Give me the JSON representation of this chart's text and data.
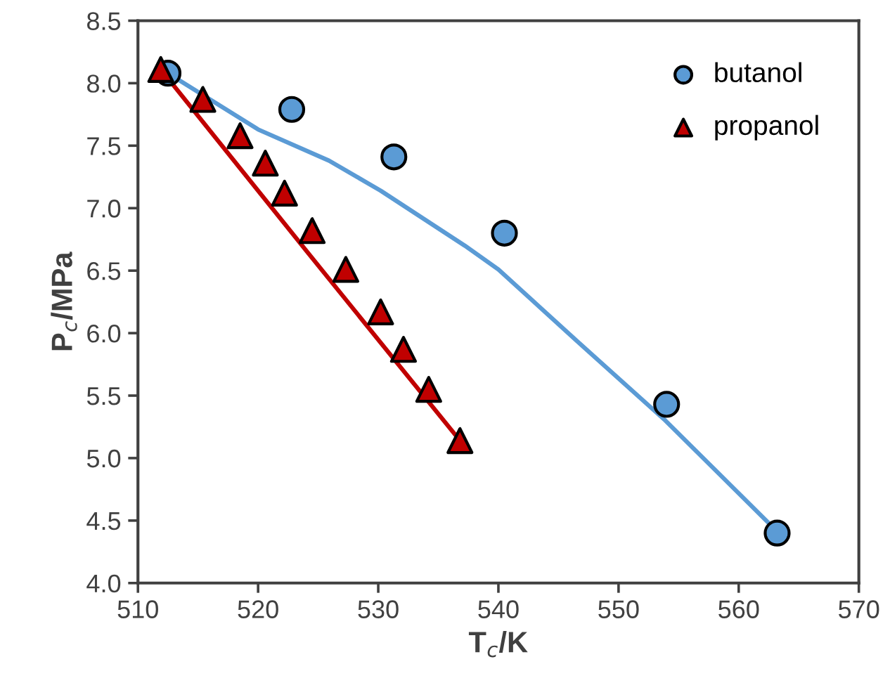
{
  "chart_data": {
    "type": "scatter",
    "xlabel": "T$_{c}$/K",
    "ylabel": "P$_{c}$/MPa",
    "xlim": [
      510,
      570
    ],
    "xticks": [
      510,
      520,
      530,
      540,
      550,
      560,
      570
    ],
    "ylim": [
      4.0,
      8.5
    ],
    "yticks": [
      {
        "value": 4.0,
        "label": "4.0"
      },
      {
        "value": 4.5,
        "label": "4.5"
      },
      {
        "value": 5.0,
        "label": "5.0"
      },
      {
        "value": 5.5,
        "label": "5.5"
      },
      {
        "value": 6.0,
        "label": "6.0"
      },
      {
        "value": 6.5,
        "label": "6.5"
      },
      {
        "value": 7.0,
        "label": "7.0"
      },
      {
        "value": 7.5,
        "label": "7.5"
      },
      {
        "value": 8.0,
        "label": "8.0"
      },
      {
        "value": 8.5,
        "label": "8.5"
      }
    ],
    "grid": false,
    "legend": "top right",
    "series": [
      {
        "type": "line",
        "color": "#5b9bd5",
        "x": [
          512.5,
          520,
          525.9,
          530.2,
          537.2,
          540,
          546.5,
          553.9,
          562.5
        ],
        "values": [
          8.08,
          7.63,
          7.38,
          7.14,
          6.7,
          6.51,
          5.94,
          5.3,
          4.48
        ],
        "marker": "none",
        "line_style": "solid"
      },
      {
        "type": "line",
        "color": "#c00000",
        "x": [
          511.9,
          524.0,
          536.8
        ],
        "values": [
          8.11,
          6.66,
          5.14
        ],
        "marker": "none",
        "line_style": "solid"
      },
      {
        "name": "butanol",
        "color": "#5b9bd5",
        "x": [
          512.5,
          522.8,
          531.3,
          540.5,
          554.0,
          563.2
        ],
        "values": [
          8.08,
          7.79,
          7.41,
          6.8,
          5.43,
          4.4
        ],
        "marker": "circle"
      },
      {
        "name": "propanol",
        "color": "#c00000",
        "x": [
          511.9,
          515.4,
          518.5,
          520.6,
          522.2,
          524.5,
          527.3,
          530.2,
          532.1,
          534.2,
          536.8
        ],
        "values": [
          8.11,
          7.87,
          7.58,
          7.36,
          7.12,
          6.82,
          6.51,
          6.17,
          5.87,
          5.55,
          5.14
        ],
        "marker": "triangle"
      }
    ]
  }
}
